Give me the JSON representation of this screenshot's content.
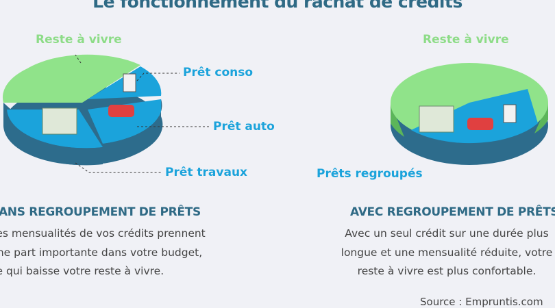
{
  "title": "Le fonctionnement du rachat de crédits",
  "colors": {
    "title": "#2f6a85",
    "green": "#8ddc87",
    "blue": "#1ba3db",
    "blue_side": "#2d6c8c",
    "green_side": "#5cb55a"
  },
  "left": {
    "labels": {
      "reste": "Reste à vivre",
      "conso": "Prêt conso",
      "auto": "Prêt auto",
      "travaux": "Prêt travaux"
    },
    "heading": "SANS REGROUPEMENT DE PRÊTS",
    "body": [
      "Les mensualités de vos crédits prennent",
      "une part importante dans votre budget,",
      "ce qui baisse votre reste à vivre."
    ]
  },
  "right": {
    "labels": {
      "reste": "Reste à vivre",
      "regroupes": "Prêts regroupés"
    },
    "heading": "AVEC REGROUPEMENT DE PRÊTS",
    "body": [
      "Avec un seul crédit sur une durée plus",
      "longue et une mensualité réduite, votre",
      "reste à vivre est plus confortable."
    ]
  },
  "source": "Source : Empruntis.com"
}
